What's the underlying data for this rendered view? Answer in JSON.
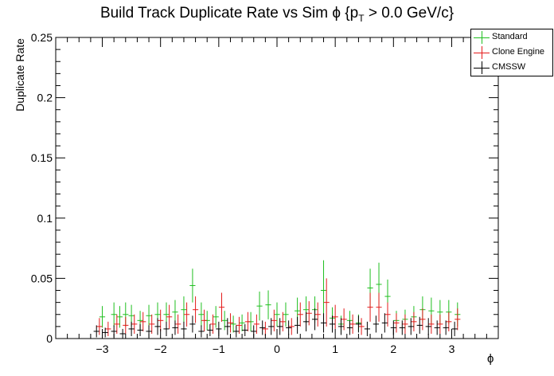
{
  "title": {
    "main": "Build Track Duplicate Rate vs Sim ϕ {p",
    "sub": "T",
    "tail": " > 0.0 GeV/c}"
  },
  "legend": {
    "items": [
      {
        "label": "Standard",
        "color": "#1fbf1f"
      },
      {
        "label": "Clone Engine",
        "color": "#e41a1a"
      },
      {
        "label": "CMSSW",
        "color": "#000000"
      }
    ]
  },
  "chart_data": {
    "type": "scatter",
    "title": "Build Track Duplicate Rate vs Sim ϕ {pT > 0.0 GeV/c}",
    "xlabel": "ϕ",
    "ylabel": "Duplicate Rate",
    "xlim": [
      -3.8,
      3.8
    ],
    "ylim": [
      0,
      0.25
    ],
    "xticks": [
      -3,
      -2,
      -1,
      0,
      1,
      2,
      3
    ],
    "xtick_labels": [
      "−3",
      "−2",
      "−1",
      "0",
      "1",
      "2",
      "3"
    ],
    "yticks": [
      0,
      0.05,
      0.1,
      0.15,
      0.2,
      0.25
    ],
    "ytick_labels": [
      "0",
      "0.05",
      "0.1",
      "0.15",
      "0.2",
      "0.25"
    ],
    "legend_position": "top-right",
    "bin_width": 0.0982,
    "series": [
      {
        "name": "Standard",
        "color": "#1fbf1f",
        "x": [
          -3.0,
          -2.8,
          -2.7,
          -2.6,
          -2.5,
          -2.35,
          -2.2,
          -2.05,
          -1.9,
          -1.75,
          -1.6,
          -1.45,
          -1.3,
          -1.2,
          -1.05,
          -0.9,
          -0.75,
          -0.6,
          -0.45,
          -0.3,
          -0.15,
          0.0,
          0.15,
          0.35,
          0.5,
          0.65,
          0.8,
          0.95,
          1.1,
          1.25,
          1.4,
          1.6,
          1.75,
          1.9,
          2.05,
          2.2,
          2.35,
          2.5,
          2.65,
          2.8,
          2.95,
          3.1
        ],
        "y": [
          0.018,
          0.02,
          0.018,
          0.02,
          0.019,
          0.015,
          0.019,
          0.02,
          0.02,
          0.022,
          0.024,
          0.044,
          0.02,
          0.015,
          0.018,
          0.015,
          0.012,
          0.013,
          0.014,
          0.027,
          0.028,
          0.02,
          0.02,
          0.023,
          0.024,
          0.024,
          0.04,
          0.017,
          0.012,
          0.015,
          0.013,
          0.042,
          0.045,
          0.035,
          0.015,
          0.016,
          0.018,
          0.024,
          0.023,
          0.022,
          0.022,
          0.02
        ],
        "err": [
          0.009,
          0.01,
          0.009,
          0.01,
          0.009,
          0.008,
          0.009,
          0.01,
          0.01,
          0.01,
          0.011,
          0.014,
          0.01,
          0.008,
          0.009,
          0.008,
          0.007,
          0.007,
          0.008,
          0.012,
          0.012,
          0.01,
          0.01,
          0.011,
          0.011,
          0.011,
          0.025,
          0.009,
          0.007,
          0.008,
          0.007,
          0.016,
          0.018,
          0.014,
          0.008,
          0.008,
          0.009,
          0.011,
          0.011,
          0.01,
          0.01,
          0.01
        ]
      },
      {
        "name": "Clone Engine",
        "color": "#e41a1a",
        "x": [
          -3.05,
          -2.9,
          -2.75,
          -2.6,
          -2.45,
          -2.3,
          -2.15,
          -2.0,
          -1.85,
          -1.7,
          -1.55,
          -1.4,
          -1.25,
          -1.1,
          -0.95,
          -0.8,
          -0.65,
          -0.5,
          -0.35,
          -0.2,
          -0.05,
          0.1,
          0.25,
          0.4,
          0.55,
          0.7,
          0.85,
          1.0,
          1.15,
          1.3,
          1.45,
          1.6,
          1.75,
          1.9,
          2.05,
          2.2,
          2.35,
          2.5,
          2.65,
          2.8,
          2.95,
          3.1
        ],
        "y": [
          0.01,
          0.008,
          0.012,
          0.011,
          0.012,
          0.014,
          0.012,
          0.015,
          0.018,
          0.012,
          0.02,
          0.024,
          0.015,
          0.012,
          0.026,
          0.013,
          0.011,
          0.014,
          0.012,
          0.008,
          0.015,
          0.014,
          0.01,
          0.02,
          0.021,
          0.02,
          0.03,
          0.018,
          0.016,
          0.012,
          0.01,
          0.026,
          0.026,
          0.02,
          0.013,
          0.012,
          0.014,
          0.016,
          0.012,
          0.012,
          0.014,
          0.016
        ],
        "err": [
          0.007,
          0.006,
          0.008,
          0.007,
          0.008,
          0.008,
          0.008,
          0.009,
          0.01,
          0.008,
          0.01,
          0.011,
          0.009,
          0.008,
          0.012,
          0.008,
          0.007,
          0.008,
          0.008,
          0.006,
          0.009,
          0.008,
          0.007,
          0.01,
          0.01,
          0.01,
          0.02,
          0.01,
          0.009,
          0.008,
          0.007,
          0.012,
          0.012,
          0.01,
          0.008,
          0.008,
          0.008,
          0.009,
          0.008,
          0.008,
          0.008,
          0.009
        ]
      },
      {
        "name": "CMSSW",
        "color": "#000000",
        "x": [
          -3.1,
          -2.95,
          -2.8,
          -2.65,
          -2.5,
          -2.35,
          -2.2,
          -2.05,
          -1.9,
          -1.75,
          -1.6,
          -1.45,
          -1.3,
          -1.15,
          -1.0,
          -0.85,
          -0.7,
          -0.55,
          -0.4,
          -0.25,
          -0.1,
          0.05,
          0.2,
          0.35,
          0.5,
          0.65,
          0.8,
          0.95,
          1.1,
          1.25,
          1.4,
          1.55,
          1.7,
          1.85,
          2.0,
          2.15,
          2.3,
          2.45,
          2.6,
          2.75,
          2.9,
          3.05
        ],
        "y": [
          0.006,
          0.005,
          0.006,
          0.004,
          0.008,
          0.007,
          0.006,
          0.01,
          0.008,
          0.009,
          0.008,
          0.012,
          0.006,
          0.007,
          0.008,
          0.01,
          0.006,
          0.007,
          0.006,
          0.009,
          0.01,
          0.01,
          0.009,
          0.011,
          0.014,
          0.016,
          0.013,
          0.012,
          0.01,
          0.009,
          0.012,
          0.008,
          0.012,
          0.013,
          0.009,
          0.009,
          0.01,
          0.011,
          0.01,
          0.009,
          0.009,
          0.008
        ],
        "err": [
          0.005,
          0.004,
          0.005,
          0.004,
          0.006,
          0.005,
          0.005,
          0.007,
          0.006,
          0.006,
          0.006,
          0.007,
          0.005,
          0.005,
          0.006,
          0.007,
          0.005,
          0.005,
          0.005,
          0.006,
          0.007,
          0.007,
          0.006,
          0.007,
          0.008,
          0.009,
          0.008,
          0.007,
          0.007,
          0.006,
          0.007,
          0.006,
          0.007,
          0.008,
          0.006,
          0.006,
          0.007,
          0.007,
          0.007,
          0.006,
          0.006,
          0.006
        ]
      }
    ]
  }
}
